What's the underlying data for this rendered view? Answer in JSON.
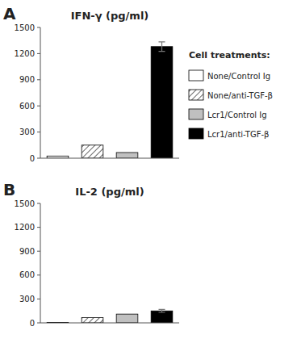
{
  "chart_data": [
    {
      "type": "bar",
      "title": "IFN-γ  (pg/ml)",
      "annotations": [
        "A"
      ],
      "legend_title": "Cell treatments:",
      "categories": [
        "None/Control Ig",
        "None/anti-TGF-β",
        "Lcr1/Control Ig",
        "Lcr1/anti-TGF-β"
      ],
      "values": [
        25,
        150,
        65,
        1280
      ],
      "errors": [
        0,
        0,
        0,
        55
      ],
      "colors": [
        "white",
        "white",
        "#c0c0c0",
        "black"
      ],
      "ylim": [
        0,
        1500
      ],
      "yticks": [
        0,
        300,
        600,
        900,
        1200,
        1500
      ],
      "grid": false,
      "tick_labels": "y"
    },
    {
      "type": "bar",
      "title": "IL-2 (pg/ml)",
      "annotations": [
        "B"
      ],
      "categories": [
        "None/Control Ig",
        "None/anti-TGF-β",
        "Lcr1/Control Ig",
        "Lcr1/anti-TGF-β"
      ],
      "values": [
        5,
        65,
        110,
        150
      ],
      "errors": [
        0,
        0,
        0,
        18
      ],
      "colors": [
        "white",
        "white",
        "#c0c0c0",
        "black"
      ],
      "ylim": [
        0,
        1500
      ],
      "yticks": [
        0,
        300,
        600,
        900,
        1200,
        1500
      ],
      "grid": false,
      "tick_labels": "y"
    }
  ]
}
